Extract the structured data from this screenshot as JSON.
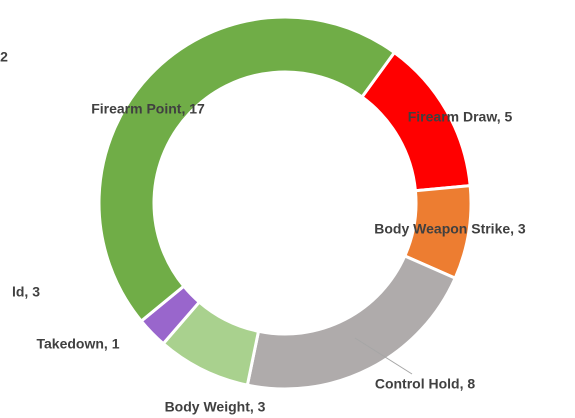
{
  "chart_data": {
    "type": "donut",
    "values": [
      5,
      3,
      8,
      3,
      1,
      17
    ],
    "value_labels": [
      "Firearm Draw, 5",
      "Body Weapon Strike, 3",
      "Control Hold, 8",
      "Body Weight, 3",
      "Takedown, 1",
      "Firearm Point, 17"
    ],
    "colors": [
      "#ff0000",
      "#ed7d31",
      "#afabab",
      "#a9d18e",
      "#9966cc",
      "#70ad47"
    ],
    "annotations": [
      "ld, 3",
      "2"
    ]
  }
}
